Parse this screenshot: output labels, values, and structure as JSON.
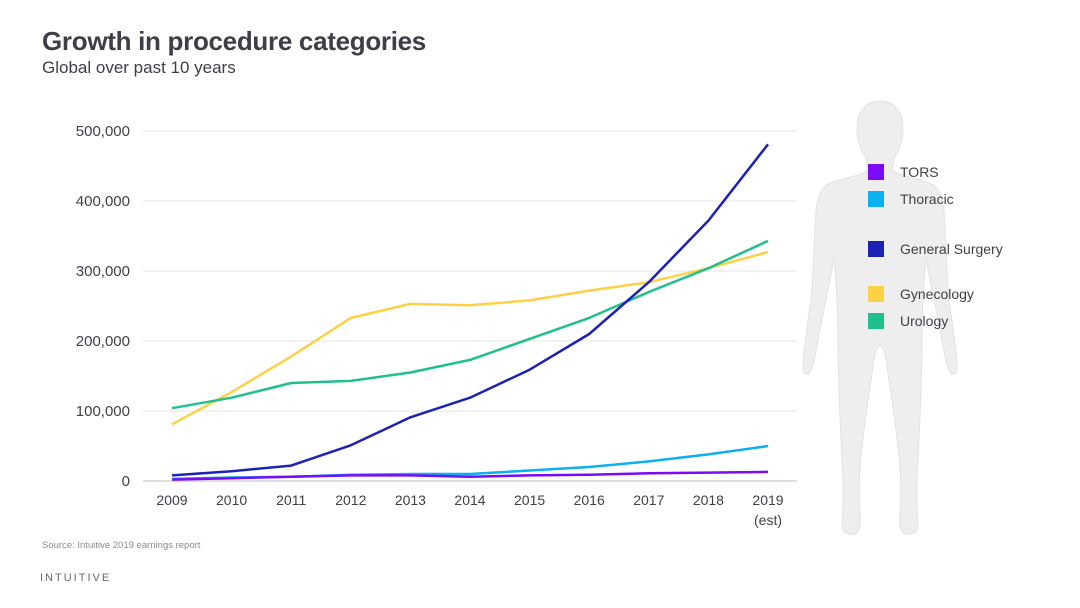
{
  "header": {
    "title": "Growth in procedure categories",
    "subtitle": "Global over past 10 years"
  },
  "footer": {
    "source": "Source: Intuitive 2019 earnings report",
    "logo_text": "INTUITIVE"
  },
  "decoration": {
    "figure_icon": "human-body-silhouette",
    "figure_color": "#eeeeee"
  },
  "chart_data": {
    "type": "line",
    "title": "Growth in procedure categories",
    "subtitle": "Global over past 10 years",
    "xlabel": "",
    "ylabel": "",
    "categories": [
      "2009",
      "2010",
      "2011",
      "2012",
      "2013",
      "2014",
      "2015",
      "2016",
      "2017",
      "2018",
      "2019"
    ],
    "category_sublabels": [
      "",
      "",
      "",
      "",
      "",
      "",
      "",
      "",
      "",
      "",
      "(est)"
    ],
    "ylim": [
      0,
      500000
    ],
    "yticks": [
      0,
      100000,
      200000,
      300000,
      400000,
      500000
    ],
    "ytick_labels": [
      "0",
      "100,000",
      "200,000",
      "300,000",
      "400,000",
      "500,000"
    ],
    "grid": true,
    "legend_position": "right",
    "series": [
      {
        "name": "TORS",
        "color": "#7a0cf5",
        "values": [
          2000,
          4000,
          6000,
          8000,
          8000,
          6000,
          8000,
          9000,
          11000,
          12000,
          13000
        ]
      },
      {
        "name": "Thoracic",
        "color": "#0bb0ee",
        "values": [
          3000,
          5000,
          6000,
          9000,
          10000,
          10000,
          15000,
          20000,
          28000,
          38000,
          50000
        ]
      },
      {
        "name": "General Surgery",
        "color": "#1c22b4",
        "values": [
          8000,
          14000,
          22000,
          51000,
          91000,
          119000,
          159000,
          210000,
          284000,
          372000,
          481000
        ]
      },
      {
        "name": "Gynecology",
        "color": "#fdd146",
        "values": [
          81000,
          127000,
          178000,
          233000,
          253000,
          251000,
          258000,
          272000,
          284000,
          304000,
          327000
        ]
      },
      {
        "name": "Urology",
        "color": "#1fc08d",
        "values": [
          104000,
          119000,
          140000,
          143000,
          155000,
          173000,
          203000,
          233000,
          270000,
          304000,
          343000
        ]
      }
    ]
  }
}
